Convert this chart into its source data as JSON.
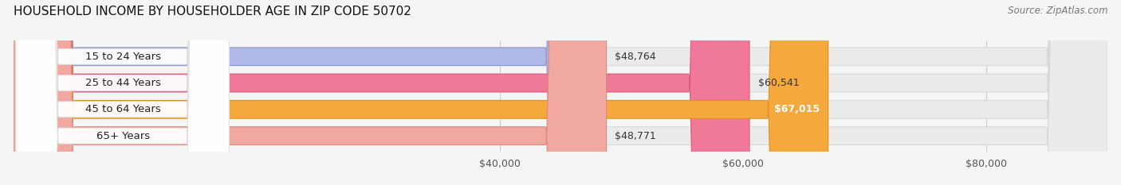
{
  "title": "HOUSEHOLD INCOME BY HOUSEHOLDER AGE IN ZIP CODE 50702",
  "source": "Source: ZipAtlas.com",
  "categories": [
    "15 to 24 Years",
    "25 to 44 Years",
    "45 to 64 Years",
    "65+ Years"
  ],
  "values": [
    48764,
    60541,
    67015,
    48771
  ],
  "bar_colors": [
    "#b0b8e8",
    "#f07898",
    "#f5a83c",
    "#f0a8a0"
  ],
  "bar_edge_colors": [
    "#9098d0",
    "#e05878",
    "#e09020",
    "#e08880"
  ],
  "value_labels": [
    "$48,764",
    "$60,541",
    "$67,015",
    "$48,771"
  ],
  "value_inside": [
    false,
    false,
    true,
    false
  ],
  "xlim_min": 0,
  "xlim_max": 90000,
  "xticks": [
    40000,
    60000,
    80000
  ],
  "xtick_labels": [
    "$40,000",
    "$60,000",
    "$80,000"
  ],
  "background_color": "#f5f5f5",
  "bar_background_color": "#ebebeb",
  "bar_background_edge": "#d8d8d8",
  "title_fontsize": 11,
  "source_fontsize": 8.5,
  "label_fontsize": 9.5,
  "value_fontsize": 9,
  "tick_fontsize": 9
}
